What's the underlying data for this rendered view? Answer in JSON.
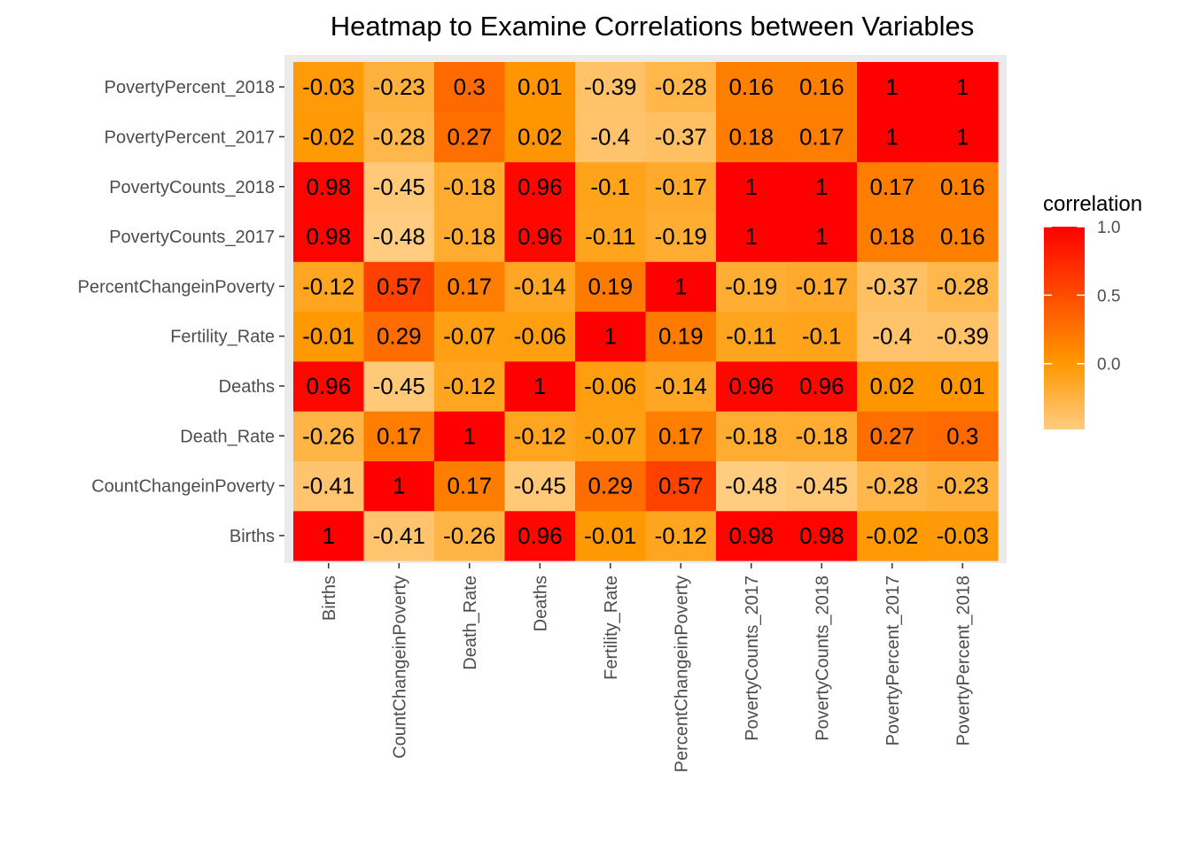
{
  "chart_data": {
    "type": "heatmap",
    "title": "Heatmap to Examine Correlations between Variables",
    "x_categories": [
      "Births",
      "CountChangeinPoverty",
      "Death_Rate",
      "Deaths",
      "Fertility_Rate",
      "PercentChangeinPoverty",
      "PovertyCounts_2017",
      "PovertyCounts_2018",
      "PovertyPercent_2017",
      "PovertyPercent_2018"
    ],
    "y_categories": [
      "Births",
      "CountChangeinPoverty",
      "Death_Rate",
      "Deaths",
      "Fertility_Rate",
      "PercentChangeinPoverty",
      "PovertyCounts_2017",
      "PovertyCounts_2018",
      "PovertyPercent_2017",
      "PovertyPercent_2018"
    ],
    "values": [
      [
        1,
        -0.41,
        -0.26,
        0.96,
        -0.01,
        -0.12,
        0.98,
        0.98,
        -0.02,
        -0.03
      ],
      [
        -0.41,
        1,
        0.17,
        -0.45,
        0.29,
        0.57,
        -0.48,
        -0.45,
        -0.28,
        -0.23
      ],
      [
        -0.26,
        0.17,
        1,
        -0.12,
        -0.07,
        0.17,
        -0.18,
        -0.18,
        0.27,
        0.3
      ],
      [
        0.96,
        -0.45,
        -0.12,
        1,
        -0.06,
        -0.14,
        0.96,
        0.96,
        0.02,
        0.01
      ],
      [
        -0.01,
        0.29,
        -0.07,
        -0.06,
        1,
        0.19,
        -0.11,
        -0.1,
        -0.4,
        -0.39
      ],
      [
        -0.12,
        0.57,
        0.17,
        -0.14,
        0.19,
        1,
        -0.19,
        -0.17,
        -0.37,
        -0.28
      ],
      [
        0.98,
        -0.48,
        -0.18,
        0.96,
        -0.11,
        -0.19,
        1,
        1,
        0.18,
        0.16
      ],
      [
        0.98,
        -0.45,
        -0.18,
        0.96,
        -0.1,
        -0.17,
        1,
        1,
        0.17,
        0.16
      ],
      [
        -0.02,
        -0.28,
        0.27,
        0.02,
        -0.4,
        -0.37,
        0.18,
        0.17,
        1,
        1
      ],
      [
        -0.03,
        -0.23,
        0.3,
        0.01,
        -0.39,
        -0.28,
        0.16,
        0.16,
        1,
        1
      ]
    ],
    "legend": {
      "title": "correlation",
      "placement": "right",
      "ticks": [
        "1.0",
        "0.5",
        "0.0"
      ],
      "range": [
        -0.48,
        1.0
      ]
    },
    "colors": {
      "low": "#FFCC80",
      "mid": "#FF9800",
      "high": "#FF0000",
      "panel": "#EBEBEB"
    }
  }
}
